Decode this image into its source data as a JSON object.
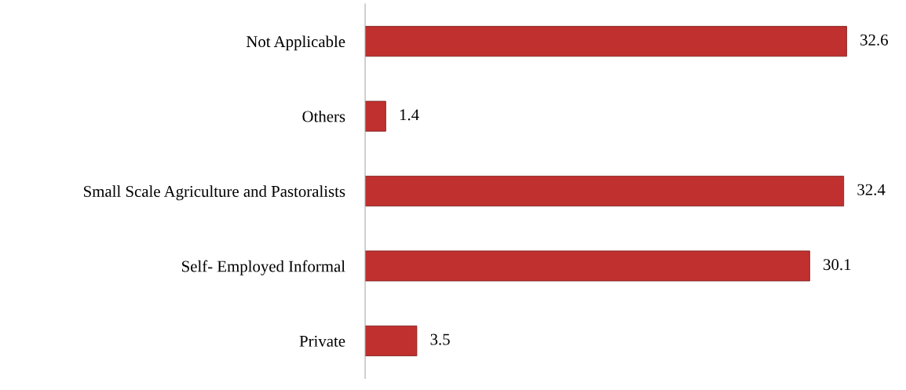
{
  "chart_data": {
    "type": "bar",
    "orientation": "horizontal",
    "categories": [
      "Not Applicable",
      "Others",
      "Small Scale Agriculture and Pastoralists",
      "Self- Employed Informal",
      "Private"
    ],
    "values": [
      32.6,
      1.4,
      32.4,
      30.1,
      3.5
    ],
    "color": "#c0302f",
    "data_labels": true,
    "grid": false,
    "legend": false
  }
}
